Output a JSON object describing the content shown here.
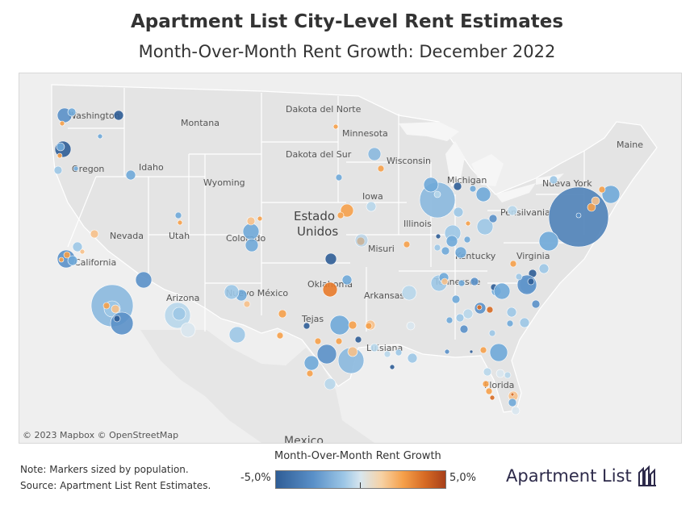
{
  "title": "Apartment List City-Level Rent Estimates",
  "subtitle": "Month-Over-Month Rent Growth: December 2022",
  "map": {
    "copyright": "© 2023 Mapbox © OpenStreetMap",
    "labels": {
      "washington": "Washington",
      "oregon": "Oregon",
      "idaho": "Idaho",
      "montana": "Montana",
      "wyoming": "Wyoming",
      "nevada": "Nevada",
      "utah": "Utah",
      "colorado": "Colorado",
      "california": "California",
      "arizona": "Arizona",
      "new_mexico": "Nuevo México",
      "north_dakota": "Dakota del Norte",
      "south_dakota": "Dakota del Sur",
      "minnesota": "Minnesota",
      "wisconsin": "Wisconsin",
      "iowa": "Iowa",
      "illinois": "Illinois",
      "michigan": "Michigan",
      "missouri": "Misuri",
      "oklahoma": "Oklahoma",
      "arkansas": "Arkansas",
      "texas": "Tejas",
      "louisiana": "Luisiana",
      "tennessee": "Tennessee",
      "kentucky": "Kentucky",
      "virginia": "Virginia",
      "pennsylvania": "Pensilvania",
      "new_york": "Nueva York",
      "maine": "Maine",
      "florida": "Florida",
      "country": "Estados Unidos",
      "mexico": "Mexico"
    }
  },
  "legend": {
    "title": "Month-Over-Month Rent Growth",
    "min_label": "-5,0%",
    "max_label": "5,0%",
    "color_min": "#2f5d96",
    "color_mid": "#d8e6ee",
    "color_max": "#a8401a"
  },
  "note": {
    "line1": "Note: Markers sized by population.",
    "line2": "Source: Apartment List Rent Estimates."
  },
  "brand": {
    "name": "Apartment List",
    "icon": "apartment-list-logo-icon"
  }
}
